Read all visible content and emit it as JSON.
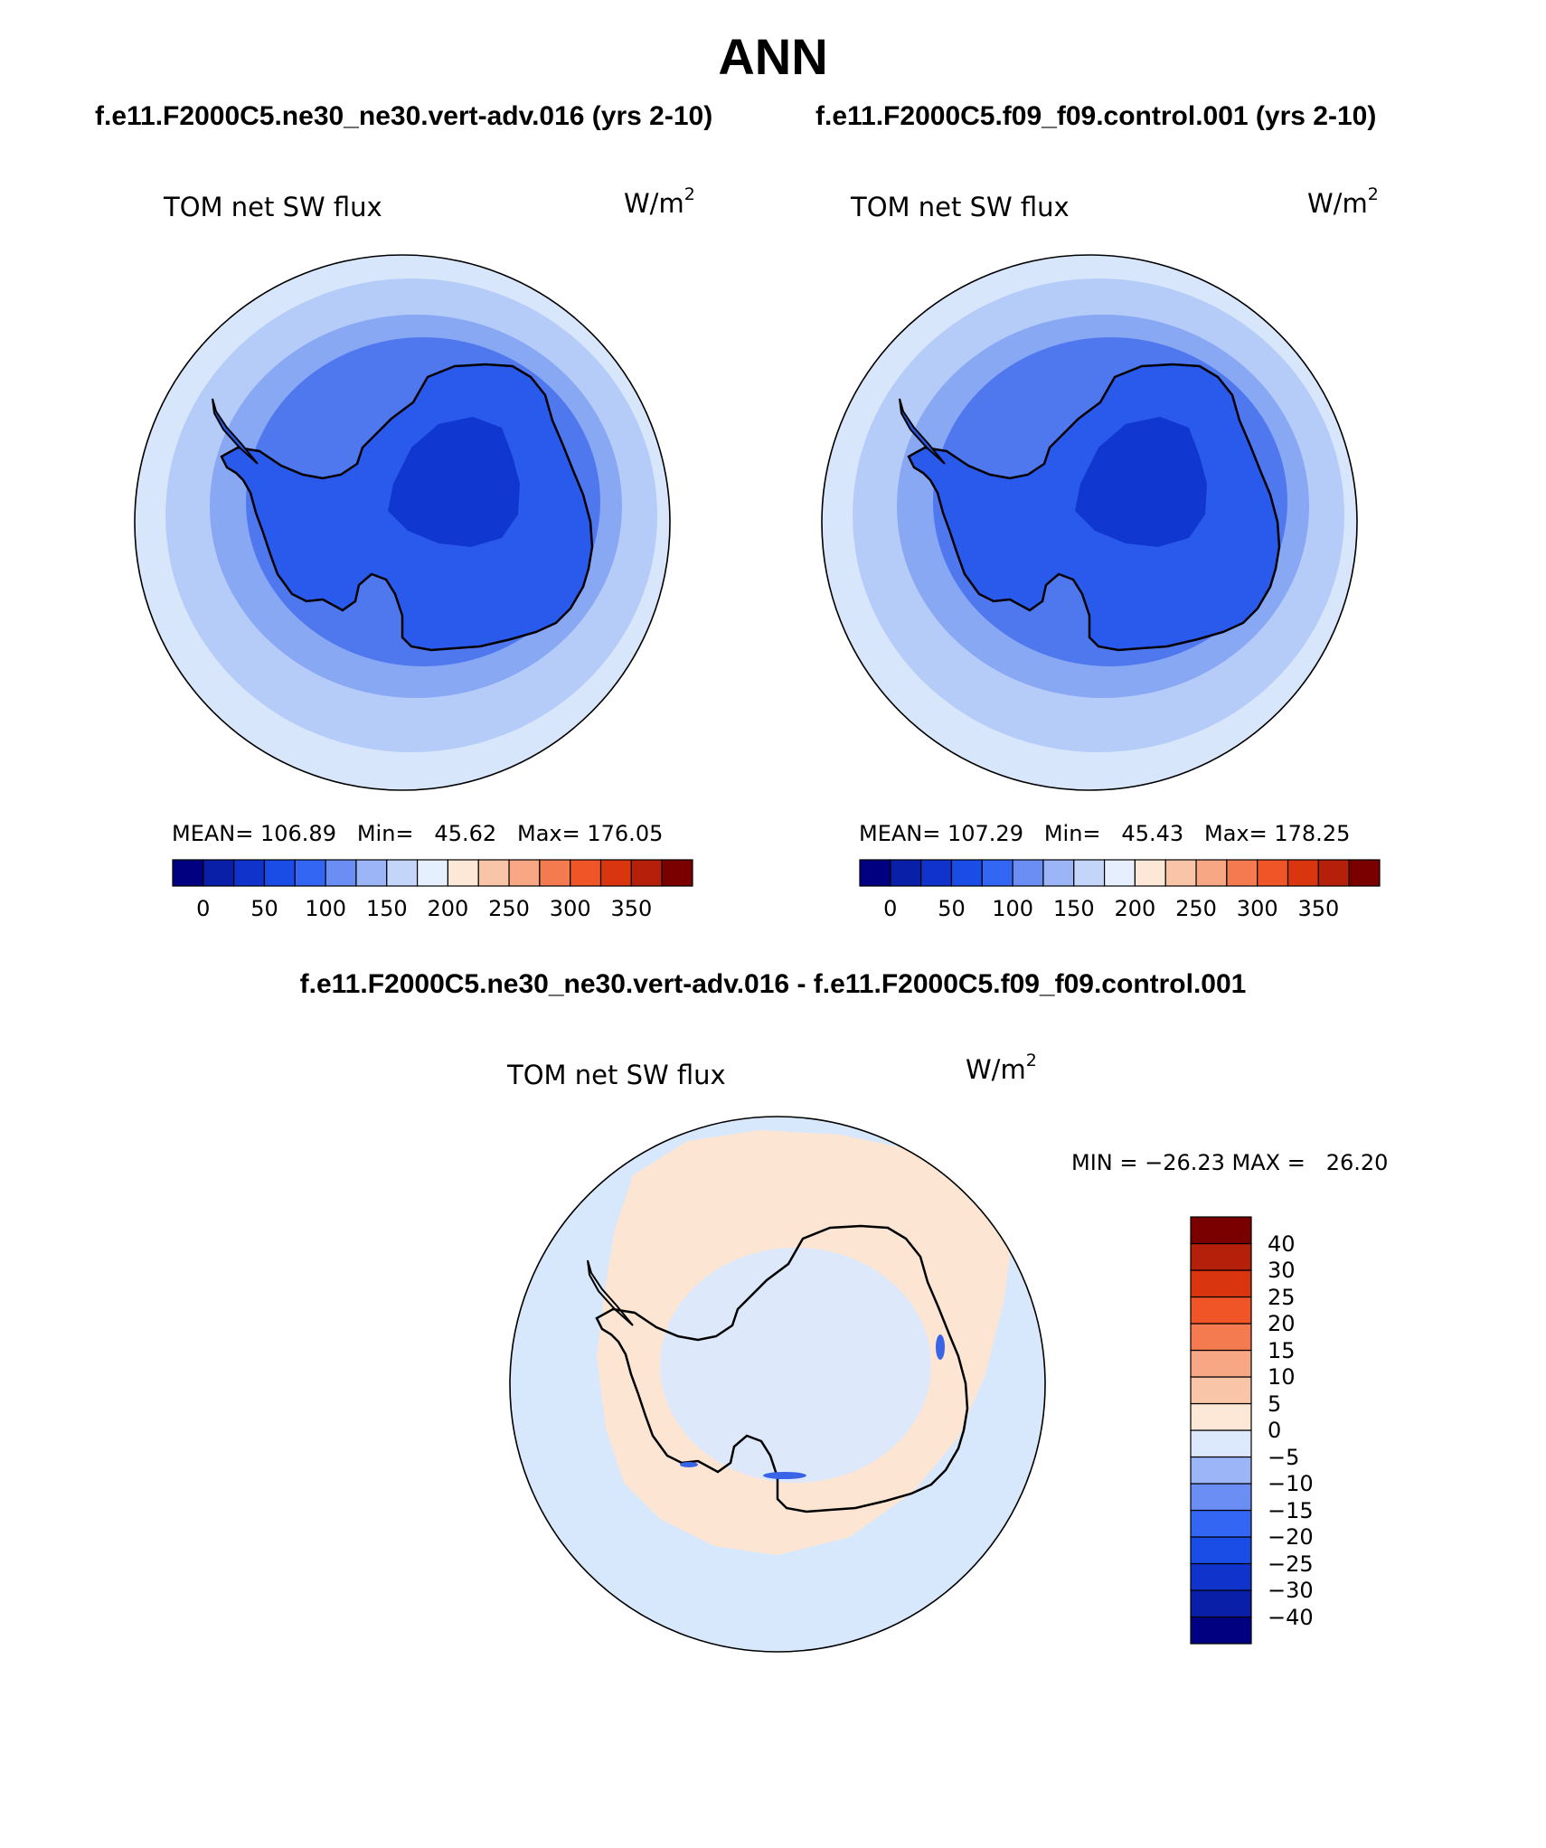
{
  "title": "ANN",
  "case_left": "f.e11.F2000C5.ne30_ne30.vert-adv.016 (yrs 2-10)",
  "case_right": "f.e11.F2000C5.f09_f09.control.001 (yrs 2-10)",
  "diff_title": "f.e11.F2000C5.ne30_ne30.vert-adv.016 - f.e11.F2000C5.f09_f09.control.001",
  "panels": [
    {
      "variable": "TOM net SW flux",
      "units": "W/m",
      "units_sup": "2",
      "stats": "MEAN= 106.89   Min=   45.62   Max= 176.05"
    },
    {
      "variable": "TOM net SW flux",
      "units": "W/m",
      "units_sup": "2",
      "stats": "MEAN= 107.29   Min=   45.43   Max= 178.25"
    },
    {
      "variable": "TOM net SW flux",
      "units": "W/m",
      "units_sup": "2",
      "stats": "MIN = −26.23 MAX =   26.20"
    }
  ],
  "abs_colorbar": {
    "colors": [
      "#000080",
      "#0a1fa8",
      "#1033cc",
      "#1a4de6",
      "#3366f2",
      "#6b8ef5",
      "#9bb5f7",
      "#c4d5fa",
      "#e6effd",
      "#fde8d8",
      "#f9c5a8",
      "#f7a783",
      "#f47b4f",
      "#ef5526",
      "#d9350f",
      "#b5200a",
      "#7a0000"
    ],
    "ticks": [
      "0",
      "50",
      "100",
      "150",
      "200",
      "250",
      "300",
      "350"
    ]
  },
  "diff_colorbar": {
    "colors": [
      "#000080",
      "#0a1fa8",
      "#1033cc",
      "#1a4de6",
      "#3366f2",
      "#6b8ef5",
      "#9bb5f7",
      "#dce9fc",
      "#fde8d8",
      "#f9c5a8",
      "#f7a783",
      "#f47b4f",
      "#ef5526",
      "#d9350f",
      "#b5200a",
      "#7a0000"
    ],
    "ticks": [
      "−40",
      "−30",
      "−25",
      "−20",
      "−15",
      "−10",
      "−5",
      "0",
      "5",
      "10",
      "15",
      "20",
      "25",
      "30",
      "40"
    ]
  },
  "map_colors": {
    "ring_outer": "#d8e6fc",
    "ring_2": "#b5ccf8",
    "ring_3": "#88a8f4",
    "ring_4": "#5078ee",
    "continent": "#2a5aec",
    "interior": "#1038d0",
    "diff_ocean": "#d8e8fc",
    "diff_positive": "#fde5d3",
    "diff_negative": "#3a64e8"
  }
}
